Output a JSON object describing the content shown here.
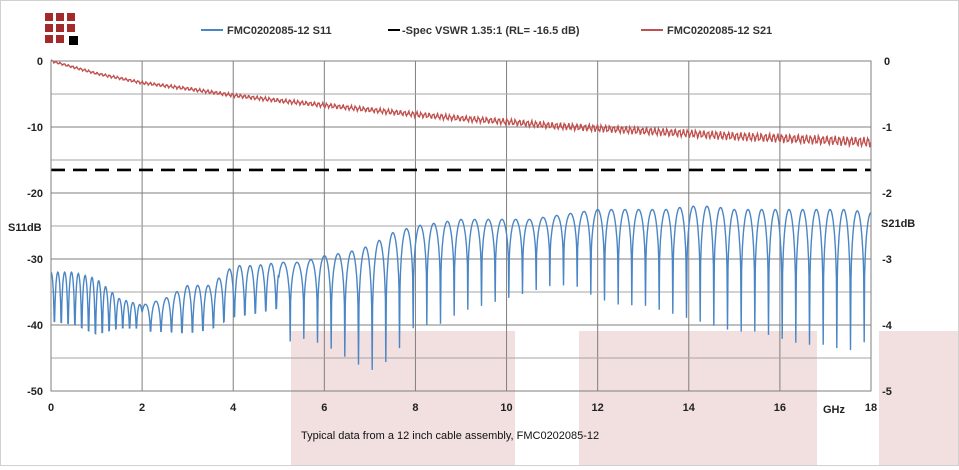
{
  "chart_data": {
    "type": "line",
    "xlabel": "GHz",
    "ylabel_left": "S11dB",
    "ylabel_right": "S21dB",
    "xlim": [
      0,
      18
    ],
    "ylim_left": [
      -50,
      0
    ],
    "ylim_right": [
      -5,
      0
    ],
    "x_ticks": [
      "0",
      "2",
      "4",
      "6",
      "8",
      "10",
      "12",
      "14",
      "16",
      "18"
    ],
    "y_ticks_left": [
      "0",
      "-10",
      "-20",
      "-30",
      "-40",
      "-50"
    ],
    "y_ticks_right": [
      "0",
      "-1",
      "-2",
      "-3",
      "-4",
      "-5"
    ],
    "grid": true,
    "legend_position": "top",
    "caption": "Typical data from a  12 inch cable assembly, FMC0202085-12",
    "series": [
      {
        "name": "FMC0202085-12 S11",
        "axis": "left",
        "color": "#4a86c5",
        "x": [
          0,
          0.5,
          1,
          1.5,
          2,
          2.5,
          3,
          3.5,
          4,
          4.5,
          5,
          5.5,
          6,
          6.5,
          7,
          7.5,
          8,
          8.5,
          9,
          9.5,
          10,
          10.5,
          11,
          11.5,
          12,
          12.5,
          13,
          13.5,
          14,
          14.5,
          15,
          15.5,
          16,
          16.5,
          17,
          17.5,
          18
        ],
        "peaks": [
          -32,
          -32,
          -33,
          -36,
          -37,
          -36,
          -34,
          -34,
          -31,
          -31,
          -30.5,
          -30.5,
          -29.5,
          -29,
          -28,
          -26,
          -25,
          -24.5,
          -24,
          -24,
          -24,
          -24,
          -23.5,
          -23,
          -22.5,
          -22.5,
          -22.5,
          -22.5,
          -22,
          -22,
          -22.5,
          -22.5,
          -22.5,
          -22.5,
          -22.5,
          -22.5,
          -23
        ],
        "nulls": [
          -47,
          -48,
          -50,
          -45,
          -44,
          -45,
          -47,
          -46,
          -45,
          -44,
          -43,
          -42,
          -43,
          -45,
          -47,
          -45,
          -40,
          -40,
          -38,
          -37,
          -36,
          -35,
          -34,
          -34,
          -36,
          -37,
          -37,
          -38,
          -39,
          -40,
          -41,
          -41,
          -42,
          -43,
          -43,
          -44,
          -42
        ]
      },
      {
        "name": "-Spec VSWR 1.35:1 (RL= -16.5 dB)",
        "axis": "left",
        "color": "#000000",
        "style": "dashed",
        "x": [
          0,
          18
        ],
        "values": [
          -16.5,
          -16.5
        ]
      },
      {
        "name": "FMC0202085-12 S21",
        "axis": "right",
        "color": "#c0504d",
        "x": [
          0,
          1,
          2,
          3,
          4,
          5,
          6,
          7,
          8,
          9,
          10,
          11,
          12,
          13,
          14,
          15,
          16,
          17,
          18
        ],
        "values": [
          0,
          -0.19,
          -0.33,
          -0.42,
          -0.52,
          -0.6,
          -0.67,
          -0.74,
          -0.81,
          -0.87,
          -0.92,
          -0.98,
          -1.02,
          -1.06,
          -1.1,
          -1.14,
          -1.17,
          -1.2,
          -1.23
        ]
      }
    ]
  }
}
